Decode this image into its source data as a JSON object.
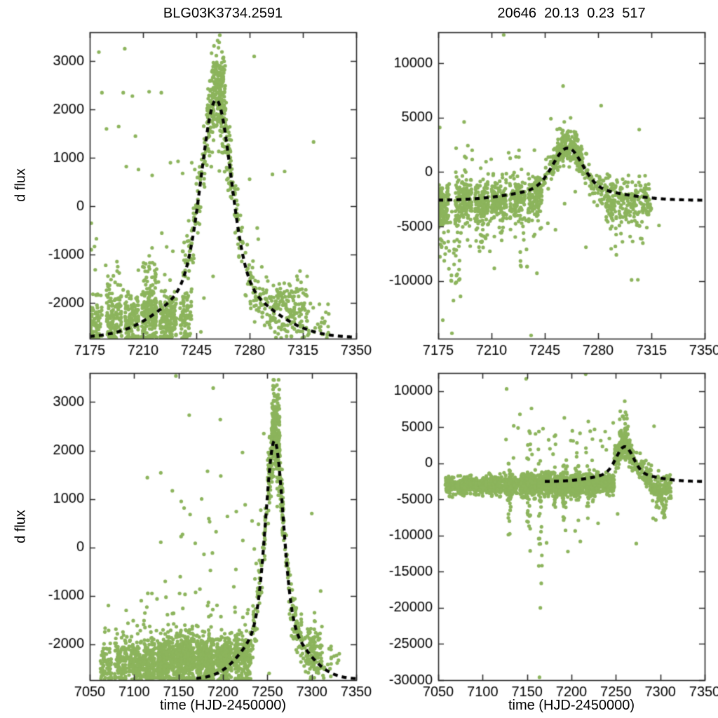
{
  "figure": {
    "background": "#ffffff",
    "point_color": "#8cb45c",
    "curve_color": "#000000",
    "axis_color": "#2b2b2b",
    "text_color": "#000000",
    "title_left": "BLG03K3734.2591",
    "title_right": "20646  20.13  0.23  517",
    "ylabel_top": "d flux",
    "ylabel_bottom": "d flux",
    "xlabel_left": "time (HJD-2450000)",
    "xlabel_right": "time (HJD-2450000)"
  },
  "chart_data": [
    {
      "id": "top-left",
      "type": "scatter",
      "title": "BLG03K3734.2591",
      "ylabel": "d flux",
      "xlim": [
        7175,
        7350
      ],
      "ylim": [
        -2740,
        3600
      ],
      "xticks": [
        7175,
        7210,
        7245,
        7280,
        7315,
        7350
      ],
      "yticks": [
        -2000,
        -1000,
        0,
        1000,
        2000,
        3000
      ],
      "seed": 11,
      "clamp_bottom": true,
      "model_curve": {
        "t0": 7258,
        "base": -2720,
        "amp": 4920,
        "w1": 0.75,
        "s1": 9.5,
        "w2": 0.25,
        "s2": 30,
        "x_start": 7175,
        "x_end": 7350
      },
      "bands": [
        [
          7175,
          7183,
          70,
          -2380,
          240
        ],
        [
          7186,
          7196,
          110,
          -2350,
          250
        ],
        [
          7198,
          7207,
          120,
          -2330,
          250
        ],
        [
          7209,
          7219,
          170,
          -2250,
          300
        ],
        [
          7209,
          7219,
          30,
          -1500,
          350
        ],
        [
          7221,
          7232,
          160,
          -2300,
          280
        ],
        [
          7186,
          7196,
          18,
          -1650,
          300
        ],
        [
          7234,
          7242,
          80,
          -2250,
          300
        ],
        [
          7293,
          7318,
          170,
          -2150,
          320
        ],
        [
          7318,
          7332,
          25,
          -2330,
          240
        ],
        [
          7175,
          7240,
          20,
          -1200,
          500
        ],
        [
          7255,
          7264,
          120,
          2550,
          430
        ]
      ],
      "curve_bands": [
        [
          7236,
          7252,
          90,
          320
        ],
        [
          7252,
          7268,
          210,
          420
        ],
        [
          7268,
          7292,
          110,
          330
        ]
      ],
      "outliers": [
        [
          7176,
          -900
        ],
        [
          7176,
          -350
        ],
        [
          7181,
          3190
        ],
        [
          7183,
          2350
        ],
        [
          7197,
          2350
        ],
        [
          7203,
          2280
        ],
        [
          7194,
          1650
        ],
        [
          7186,
          1600
        ],
        [
          7205,
          1450
        ],
        [
          7214,
          2370
        ],
        [
          7222,
          2350
        ],
        [
          7199,
          820
        ],
        [
          7207,
          760
        ],
        [
          7216,
          640
        ],
        [
          7228,
          900
        ],
        [
          7233,
          930
        ],
        [
          7236,
          680
        ],
        [
          7242,
          900
        ],
        [
          7244,
          760
        ],
        [
          7256,
          -1450
        ],
        [
          7273,
          -1050
        ],
        [
          7280,
          560
        ],
        [
          7285,
          -450
        ],
        [
          7295,
          660
        ],
        [
          7303,
          720
        ],
        [
          7322,
          1330
        ],
        [
          7283,
          3100
        ],
        [
          7198,
          3260
        ],
        [
          7260,
          3390
        ],
        [
          7248,
          -2600
        ],
        [
          7250,
          -1900
        ],
        [
          7246,
          -550
        ],
        [
          7240,
          -300
        ],
        [
          7237,
          -750
        ]
      ]
    },
    {
      "id": "top-right",
      "type": "scatter",
      "title": "20646  20.13  0.23  517",
      "xlim": [
        7175,
        7350
      ],
      "ylim": [
        -15300,
        12840
      ],
      "xticks": [
        7175,
        7210,
        7245,
        7280,
        7315,
        7350
      ],
      "yticks": [
        -10000,
        -5000,
        0,
        5000,
        10000
      ],
      "seed": 23,
      "clamp_bottom": false,
      "model_curve": {
        "t0": 7260,
        "base": -2600,
        "amp": 4800,
        "w1": 0.75,
        "s1": 9.5,
        "w2": 0.25,
        "s2": 30,
        "x_start": 7175,
        "x_end": 7350
      },
      "bands": [
        [
          7175,
          7182,
          130,
          -3100,
          1100
        ],
        [
          7186,
          7197,
          150,
          -3000,
          1100
        ],
        [
          7199,
          7208,
          130,
          -2900,
          1000
        ],
        [
          7210,
          7220,
          140,
          -2800,
          1000
        ],
        [
          7222,
          7232,
          130,
          -2700,
          1000
        ],
        [
          7234,
          7243,
          110,
          -2500,
          900
        ],
        [
          7176,
          7190,
          30,
          -6500,
          1400
        ],
        [
          7183,
          7190,
          12,
          -9300,
          1100
        ],
        [
          7199,
          7218,
          20,
          -6100,
          900
        ],
        [
          7228,
          7240,
          12,
          -7000,
          1400
        ],
        [
          7180,
          7243,
          20,
          1200,
          900
        ],
        [
          7285,
          7315,
          200,
          -2800,
          1000
        ],
        [
          7288,
          7310,
          25,
          -5800,
          1200
        ],
        [
          7253,
          7266,
          45,
          3300,
          750
        ]
      ],
      "curve_bands": [
        [
          7238,
          7252,
          60,
          700
        ],
        [
          7250,
          7270,
          170,
          650
        ],
        [
          7268,
          7290,
          90,
          800
        ]
      ],
      "outliers": [
        [
          7218,
          12600
        ],
        [
          7257,
          7900
        ],
        [
          7282,
          6100
        ],
        [
          7176,
          4100
        ],
        [
          7307,
          3900
        ],
        [
          7192,
          4600
        ],
        [
          7249,
          4900
        ],
        [
          7185,
          -11800
        ],
        [
          7187,
          -9500
        ],
        [
          7178,
          -13600
        ],
        [
          7236,
          -15000
        ],
        [
          7184,
          -14800
        ],
        [
          7252,
          -5300
        ],
        [
          7292,
          -7600
        ],
        [
          7302,
          -9900
        ],
        [
          7312,
          -5100
        ],
        [
          7272,
          -6900
        ],
        [
          7296,
          -6400
        ],
        [
          7320,
          -4900
        ],
        [
          7247,
          -4700
        ],
        [
          7231,
          -5600
        ],
        [
          7217,
          -5400
        ],
        [
          7205,
          -5900
        ],
        [
          7196,
          -6800
        ],
        [
          7258,
          -2900
        ],
        [
          7265,
          -1800
        ]
      ]
    },
    {
      "id": "bottom-left",
      "type": "scatter",
      "ylabel": "d flux",
      "xlabel": "time (HJD-2450000)",
      "xlim": [
        7050,
        7350
      ],
      "ylim": [
        -2740,
        3600
      ],
      "xticks": [
        7050,
        7100,
        7150,
        7200,
        7250,
        7300,
        7350
      ],
      "yticks": [
        -2000,
        -1000,
        0,
        1000,
        2000,
        3000
      ],
      "seed": 37,
      "clamp_bottom": true,
      "model_curve": {
        "t0": 7258,
        "base": -2720,
        "amp": 4920,
        "w1": 0.75,
        "s1": 9.5,
        "w2": 0.25,
        "s2": 30,
        "x_start": 7170,
        "x_end": 7350
      },
      "bands": [
        [
          7062,
          7075,
          80,
          -2380,
          230
        ],
        [
          7078,
          7092,
          110,
          -2360,
          240
        ],
        [
          7094,
          7108,
          130,
          -2350,
          240
        ],
        [
          7110,
          7124,
          140,
          -2340,
          250
        ],
        [
          7126,
          7145,
          260,
          -2330,
          260
        ],
        [
          7147,
          7168,
          340,
          -2300,
          270
        ],
        [
          7170,
          7190,
          300,
          -2320,
          260
        ],
        [
          7192,
          7210,
          240,
          -2300,
          260
        ],
        [
          7212,
          7232,
          200,
          -2280,
          280
        ],
        [
          7090,
          7235,
          50,
          -1500,
          400
        ],
        [
          7100,
          7245,
          22,
          300,
          800
        ],
        [
          7290,
          7312,
          120,
          -2150,
          300
        ],
        [
          7312,
          7332,
          18,
          -2380,
          220
        ],
        [
          7255,
          7264,
          110,
          2500,
          430
        ]
      ],
      "curve_bands": [
        [
          7232,
          7252,
          70,
          300
        ],
        [
          7250,
          7268,
          200,
          380
        ],
        [
          7268,
          7290,
          85,
          300
        ]
      ],
      "outliers": [
        [
          7147,
          3540
        ],
        [
          7189,
          3290
        ],
        [
          7162,
          2730
        ],
        [
          7197,
          2640
        ],
        [
          7130,
          1540
        ],
        [
          7153,
          950
        ],
        [
          7143,
          1170
        ],
        [
          7163,
          680
        ],
        [
          7176,
          1000
        ],
        [
          7185,
          530
        ],
        [
          7205,
          640
        ],
        [
          7215,
          740
        ],
        [
          7222,
          1960
        ],
        [
          7225,
          880
        ],
        [
          7120,
          -950
        ],
        [
          7135,
          -700
        ],
        [
          7108,
          -1100
        ],
        [
          7240,
          480
        ],
        [
          7244,
          -300
        ],
        [
          7236,
          -650
        ],
        [
          7091,
          -1300
        ],
        [
          7071,
          -1200
        ],
        [
          7246,
          2350
        ],
        [
          7252,
          -2600
        ],
        [
          7300,
          700
        ],
        [
          7310,
          -900
        ]
      ]
    },
    {
      "id": "bottom-right",
      "type": "scatter",
      "xlabel": "time (HJD-2450000)",
      "xlim": [
        7050,
        7350
      ],
      "ylim": [
        -30000,
        12500
      ],
      "xticks": [
        7050,
        7100,
        7150,
        7200,
        7250,
        7300,
        7350
      ],
      "yticks": [
        -30000,
        -25000,
        -20000,
        -15000,
        -10000,
        -5000,
        0,
        5000,
        10000
      ],
      "seed": 53,
      "clamp_bottom": false,
      "model_curve": {
        "t0": 7260,
        "base": -2520,
        "amp": 4820,
        "w1": 0.75,
        "s1": 9.5,
        "w2": 0.25,
        "s2": 30,
        "x_start": 7170,
        "x_end": 7350
      },
      "bands": [
        [
          7058,
          7070,
          90,
          -3100,
          550
        ],
        [
          7072,
          7088,
          130,
          -3100,
          600
        ],
        [
          7090,
          7105,
          150,
          -3050,
          600
        ],
        [
          7107,
          7122,
          160,
          -3050,
          650
        ],
        [
          7124,
          7140,
          170,
          -3000,
          700
        ],
        [
          7142,
          7160,
          260,
          -3000,
          750
        ],
        [
          7162,
          7178,
          240,
          -3000,
          750
        ],
        [
          7180,
          7196,
          240,
          -2950,
          750
        ],
        [
          7198,
          7214,
          220,
          -2950,
          700
        ],
        [
          7216,
          7232,
          200,
          -2900,
          700
        ],
        [
          7234,
          7248,
          160,
          -2850,
          650
        ],
        [
          7128,
          7132,
          25,
          -4500,
          2200
        ],
        [
          7150,
          7154,
          30,
          -5000,
          3200
        ],
        [
          7163,
          7167,
          25,
          -6000,
          3800
        ],
        [
          7178,
          7182,
          20,
          -4500,
          2400
        ],
        [
          7190,
          7194,
          25,
          -4200,
          2800
        ],
        [
          7204,
          7208,
          20,
          -3600,
          2400
        ],
        [
          7216,
          7220,
          20,
          -3100,
          2300
        ],
        [
          7125,
          7250,
          28,
          2300,
          1600
        ],
        [
          7288,
          7312,
          130,
          -3300,
          850
        ],
        [
          7295,
          7308,
          15,
          -6000,
          1100
        ],
        [
          7254,
          7264,
          40,
          4300,
          1300
        ]
      ],
      "curve_bands": [
        [
          7248,
          7268,
          150,
          850
        ],
        [
          7268,
          7290,
          90,
          850
        ]
      ],
      "outliers": [
        [
          7166,
          -16600
        ],
        [
          7165,
          -20000
        ],
        [
          7164,
          -29600
        ],
        [
          7216,
          12350
        ],
        [
          7149,
          11700
        ],
        [
          7127,
          10300
        ],
        [
          7255,
          7200
        ],
        [
          7293,
          5150
        ],
        [
          7210,
          -10800
        ],
        [
          7196,
          -12200
        ],
        [
          7172,
          -11000
        ],
        [
          7230,
          -8300
        ],
        [
          7252,
          -7000
        ],
        [
          7273,
          -11100
        ],
        [
          7292,
          -7600
        ],
        [
          7302,
          -5600
        ],
        [
          7312,
          -4800
        ],
        [
          7305,
          -4900
        ],
        [
          7260,
          8600
        ],
        [
          7262,
          6700
        ],
        [
          7247,
          5600
        ],
        [
          7238,
          4400
        ],
        [
          7219,
          5800
        ],
        [
          7226,
          4700
        ],
        [
          7142,
          6800
        ],
        [
          7135,
          5200
        ],
        [
          7155,
          7600
        ],
        [
          7168,
          4800
        ],
        [
          7182,
          3900
        ],
        [
          7192,
          6300
        ],
        [
          7201,
          4500
        ]
      ]
    }
  ]
}
